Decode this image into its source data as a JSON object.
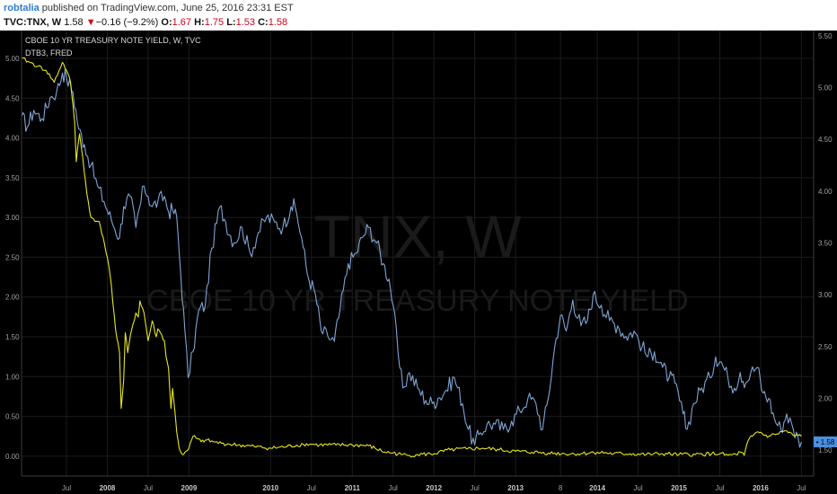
{
  "header": {
    "author": "robtalia",
    "published_text": "published on TradingView.com, June 25, 2016 23:31 EST",
    "symbol": "TVC:TNX, W",
    "last": "1.58",
    "change": "−0.16 (−9.2%)",
    "open_label": "O:",
    "open": "1.67",
    "high_label": "H:",
    "high": "1.75",
    "low_label": "L:",
    "low": "1.53",
    "close_label": "C:",
    "close": "1.58"
  },
  "colors": {
    "background": "#000000",
    "treasury_line": "#7fa4d4",
    "dtb3_line": "#e6e620",
    "grid": "#1c1c1c",
    "axis_text": "#a0a0a0",
    "price_tag": "#4a90e2",
    "watermark": "#1a1a1a"
  },
  "legend": {
    "series1": "CBOE 10 YR TREASURY NOTE YIELD, W, TVC",
    "series2": "DTB3, FRED"
  },
  "watermark": {
    "line1": "TNX, W",
    "line2": "CBOE 10 YR TREASURY NOTE YIELD"
  },
  "price_tag": "1.58",
  "chart_data": {
    "type": "line",
    "left_axis": {
      "ticks": [
        "0.00",
        "0.50",
        "1.00",
        "1.50",
        "2.00",
        "2.50",
        "3.00",
        "3.50",
        "4.00",
        "4.50",
        "5.00"
      ],
      "ylim": [
        -0.25,
        5.35
      ]
    },
    "right_axis": {
      "ticks": [
        "1.50",
        "2.00",
        "2.50",
        "3.00",
        "3.50",
        "4.00",
        "4.50",
        "5.00",
        "5.50"
      ],
      "ylim": [
        1.25,
        5.55
      ]
    },
    "x_ticks": [
      "Jul",
      "2008",
      "Jul",
      "2009",
      "2010",
      "Jul",
      "2011",
      "Jul",
      "2012",
      "Jul",
      "2013",
      "8",
      "2014",
      "Jul",
      "2015",
      "Jul",
      "2016",
      "Jul"
    ],
    "x_tick_times": [
      2007.5,
      2008.0,
      2008.5,
      2009.0,
      2010.0,
      2010.5,
      2011.0,
      2011.5,
      2012.0,
      2012.5,
      2013.0,
      2013.55,
      2014.0,
      2014.5,
      2015.0,
      2015.5,
      2016.0,
      2016.5
    ],
    "xlim": [
      2006.95,
      2016.65
    ],
    "series": [
      {
        "name": "CBOE 10 YR TREASURY NOTE YIELD, W, TVC",
        "axis": "right",
        "x": [
          2006.95,
          2007.02,
          2007.1,
          2007.2,
          2007.3,
          2007.38,
          2007.45,
          2007.5,
          2007.58,
          2007.65,
          2007.72,
          2007.8,
          2007.88,
          2007.96,
          2008.05,
          2008.15,
          2008.2,
          2008.28,
          2008.35,
          2008.45,
          2008.5,
          2008.55,
          2008.62,
          2008.7,
          2008.75,
          2008.8,
          2008.85,
          2008.9,
          2008.95,
          2008.99,
          2009.05,
          2009.12,
          2009.2,
          2009.28,
          2009.38,
          2009.45,
          2009.55,
          2009.65,
          2009.75,
          2009.85,
          2009.95,
          2010.05,
          2010.15,
          2010.25,
          2010.3,
          2010.38,
          2010.45,
          2010.55,
          2010.62,
          2010.7,
          2010.78,
          2010.85,
          2010.95,
          2011.05,
          2011.12,
          2011.2,
          2011.3,
          2011.38,
          2011.45,
          2011.5,
          2011.58,
          2011.62,
          2011.7,
          2011.8,
          2011.9,
          2011.98,
          2012.05,
          2012.15,
          2012.25,
          2012.35,
          2012.42,
          2012.5,
          2012.55,
          2012.65,
          2012.75,
          2012.85,
          2012.95,
          2013.05,
          2013.15,
          2013.25,
          2013.33,
          2013.4,
          2013.48,
          2013.55,
          2013.62,
          2013.7,
          2013.8,
          2013.88,
          2013.95,
          2014.05,
          2014.15,
          2014.25,
          2014.35,
          2014.45,
          2014.55,
          2014.62,
          2014.7,
          2014.8,
          2014.88,
          2014.95,
          2015.05,
          2015.1,
          2015.18,
          2015.28,
          2015.38,
          2015.45,
          2015.52,
          2015.6,
          2015.68,
          2015.75,
          2015.82,
          2015.88,
          2015.96,
          2016.03,
          2016.1,
          2016.17,
          2016.25,
          2016.32,
          2016.4,
          2016.46,
          2016.5
        ],
        "values": [
          4.72,
          4.62,
          4.78,
          4.7,
          4.9,
          4.96,
          5.14,
          5.1,
          4.95,
          4.6,
          4.45,
          4.25,
          4.05,
          3.9,
          3.72,
          3.55,
          3.85,
          3.95,
          3.65,
          4.05,
          3.95,
          3.85,
          3.9,
          3.95,
          3.8,
          3.82,
          3.75,
          3.2,
          2.65,
          2.2,
          2.45,
          2.85,
          2.9,
          3.45,
          3.85,
          3.7,
          3.5,
          3.65,
          3.4,
          3.6,
          3.75,
          3.7,
          3.65,
          3.85,
          3.85,
          3.55,
          3.2,
          3.0,
          2.65,
          2.6,
          2.55,
          2.85,
          3.3,
          3.4,
          3.55,
          3.65,
          3.5,
          3.3,
          3.15,
          2.9,
          2.3,
          2.1,
          2.25,
          2.1,
          1.98,
          1.95,
          2.0,
          2.08,
          2.2,
          1.95,
          1.7,
          1.55,
          1.65,
          1.75,
          1.75,
          1.7,
          1.78,
          1.88,
          2.0,
          1.95,
          1.7,
          2.0,
          2.5,
          2.8,
          2.65,
          2.95,
          2.7,
          2.75,
          3.0,
          2.9,
          2.75,
          2.7,
          2.6,
          2.65,
          2.5,
          2.4,
          2.45,
          2.3,
          2.2,
          2.15,
          1.85,
          1.7,
          1.95,
          2.1,
          2.2,
          2.4,
          2.35,
          2.2,
          2.1,
          2.25,
          2.15,
          2.25,
          2.3,
          2.05,
          2.0,
          1.8,
          1.7,
          1.85,
          1.7,
          1.62,
          1.58
        ]
      },
      {
        "name": "DTB3, FRED",
        "axis": "left",
        "x": [
          2006.95,
          2007.05,
          2007.15,
          2007.25,
          2007.35,
          2007.45,
          2007.5,
          2007.55,
          2007.6,
          2007.62,
          2007.64,
          2007.66,
          2007.7,
          2007.75,
          2007.8,
          2007.85,
          2007.9,
          2007.95,
          2008.0,
          2008.05,
          2008.1,
          2008.15,
          2008.17,
          2008.2,
          2008.22,
          2008.25,
          2008.3,
          2008.35,
          2008.38,
          2008.4,
          2008.45,
          2008.5,
          2008.55,
          2008.6,
          2008.62,
          2008.65,
          2008.7,
          2008.72,
          2008.75,
          2008.78,
          2008.8,
          2008.82,
          2008.85,
          2008.88,
          2008.9,
          2008.92,
          2008.95,
          2009.0,
          2009.05,
          2009.1,
          2009.15,
          2009.2,
          2009.3,
          2009.4,
          2009.5,
          2009.6,
          2009.8,
          2010.0,
          2010.2,
          2010.4,
          2010.5,
          2010.6,
          2010.8,
          2011.0,
          2011.2,
          2011.4,
          2011.5,
          2011.6,
          2011.7,
          2011.8,
          2012.0,
          2012.2,
          2012.4,
          2012.6,
          2012.8,
          2013.0,
          2013.2,
          2013.4,
          2013.6,
          2013.8,
          2014.0,
          2014.2,
          2014.4,
          2014.6,
          2014.8,
          2015.0,
          2015.2,
          2015.4,
          2015.5,
          2015.6,
          2015.7,
          2015.75,
          2015.8,
          2015.85,
          2015.9,
          2015.95,
          2016.0,
          2016.05,
          2016.1,
          2016.2,
          2016.3,
          2016.4,
          2016.5
        ],
        "values": [
          5.0,
          4.95,
          4.9,
          4.85,
          4.7,
          4.95,
          4.85,
          4.7,
          4.2,
          3.7,
          3.9,
          4.05,
          3.75,
          3.3,
          3.0,
          2.95,
          2.95,
          2.75,
          2.5,
          2.15,
          1.6,
          1.3,
          0.6,
          0.95,
          1.55,
          1.3,
          1.6,
          1.8,
          1.75,
          1.95,
          1.8,
          1.45,
          1.7,
          1.5,
          1.6,
          1.55,
          1.45,
          1.25,
          1.1,
          0.6,
          0.85,
          0.65,
          0.3,
          0.1,
          0.05,
          0.02,
          0.05,
          0.1,
          0.25,
          0.22,
          0.18,
          0.2,
          0.18,
          0.16,
          0.15,
          0.14,
          0.12,
          0.1,
          0.12,
          0.15,
          0.15,
          0.14,
          0.14,
          0.14,
          0.13,
          0.05,
          0.04,
          0.02,
          0.01,
          0.02,
          0.03,
          0.08,
          0.09,
          0.1,
          0.08,
          0.06,
          0.05,
          0.04,
          0.03,
          0.03,
          0.05,
          0.03,
          0.03,
          0.02,
          0.03,
          0.02,
          0.02,
          0.03,
          0.03,
          0.01,
          0.02,
          0.05,
          0.01,
          0.2,
          0.25,
          0.3,
          0.3,
          0.26,
          0.25,
          0.28,
          0.32,
          0.26,
          0.25
        ]
      }
    ]
  }
}
